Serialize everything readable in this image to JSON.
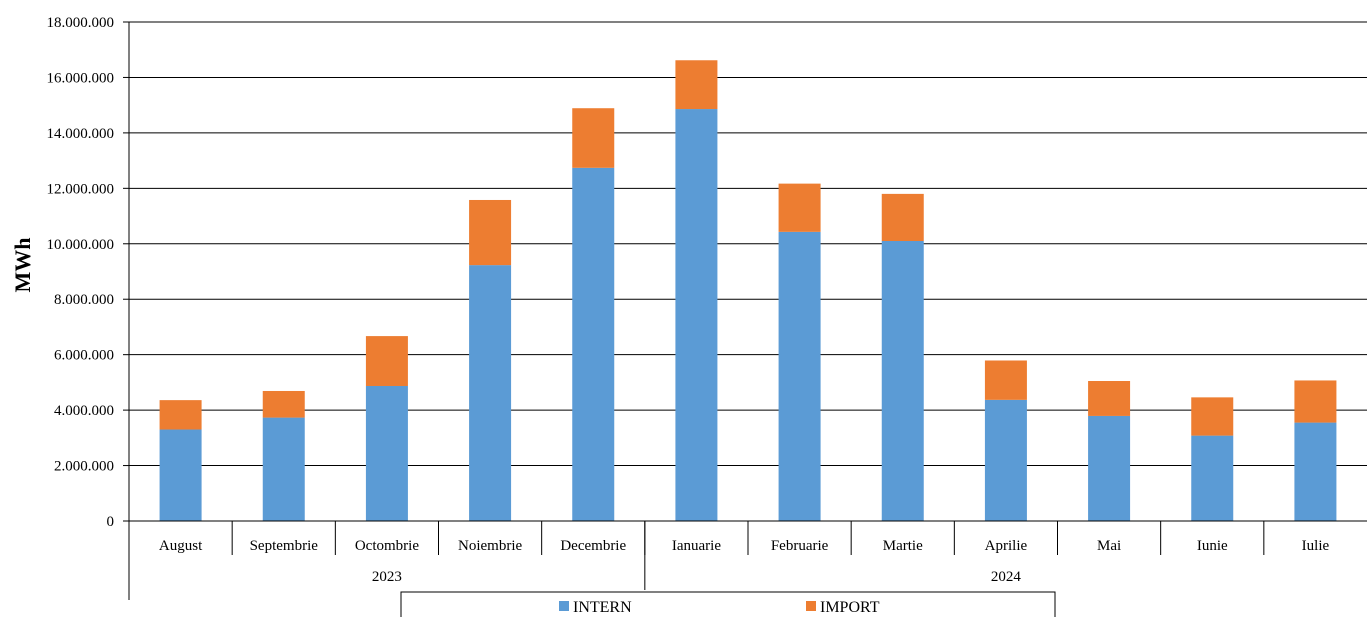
{
  "chart_data": {
    "type": "bar",
    "stacked": true,
    "ylabel": "MWh",
    "xlabel": "",
    "ylim": [
      0,
      18000000
    ],
    "yticks": [
      0,
      2000000,
      4000000,
      6000000,
      8000000,
      10000000,
      12000000,
      14000000,
      16000000,
      18000000
    ],
    "ytick_labels": [
      "0",
      "2.000.000",
      "4.000.000",
      "6.000.000",
      "8.000.000",
      "10.000.000",
      "12.000.000",
      "14.000.000",
      "16.000.000",
      "18.000.000"
    ],
    "categories": [
      "August",
      "Septembrie",
      "Octombrie",
      "Noiembrie",
      "Decembrie",
      "Ianuarie",
      "Februarie",
      "Martie",
      "Aprilie",
      "Mai",
      "Iunie",
      "Iulie"
    ],
    "groups": [
      {
        "label": "2023",
        "count": 5
      },
      {
        "label": "2024",
        "count": 7
      }
    ],
    "series": [
      {
        "name": "INTERN",
        "color": "#5B9BD5",
        "values": [
          3300000,
          3730000,
          4870000,
          9230000,
          12740000,
          14860000,
          10430000,
          10100000,
          4370000,
          3790000,
          3080000,
          3550000
        ]
      },
      {
        "name": "IMPORT",
        "color": "#ED7D31",
        "values": [
          1060000,
          960000,
          1800000,
          2350000,
          2150000,
          1760000,
          1740000,
          1700000,
          1420000,
          1260000,
          1380000,
          1520000
        ]
      }
    ],
    "grid": true,
    "legend_position": "bottom"
  }
}
